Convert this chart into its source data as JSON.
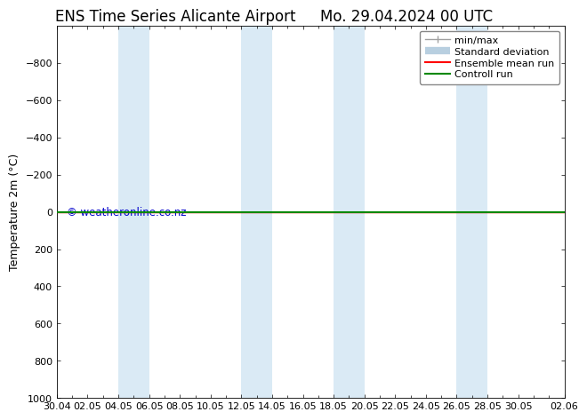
{
  "title_left": "ENS Time Series Alicante Airport",
  "title_right": "Mo. 29.04.2024 00 UTC",
  "ylabel": "Temperature 2m (°C)",
  "xlabel": "",
  "ylim": [
    -1000,
    1000
  ],
  "yticks": [
    -800,
    -600,
    -400,
    -200,
    0,
    200,
    400,
    600,
    800,
    1000
  ],
  "x_labels": [
    "30.04",
    "02.05",
    "04.05",
    "06.05",
    "08.05",
    "10.05",
    "12.05",
    "14.05",
    "16.05",
    "18.05",
    "20.05",
    "22.05",
    "24.05",
    "26.05",
    "28.05",
    "30.05",
    "02.06"
  ],
  "x_positions": [
    0,
    2,
    4,
    6,
    8,
    10,
    12,
    14,
    16,
    18,
    20,
    22,
    24,
    26,
    28,
    30,
    33
  ],
  "x_range": [
    0,
    33
  ],
  "shaded_bands": [
    [
      4,
      6
    ],
    [
      12,
      14
    ],
    [
      18,
      20
    ],
    [
      26,
      28
    ],
    [
      33,
      35
    ]
  ],
  "shaded_color": "#daeaf5",
  "ensemble_mean_y": 0,
  "control_run_y": 0,
  "ensemble_mean_color": "#ff0000",
  "control_run_color": "#008800",
  "watermark": "© weatheronline.co.nz",
  "watermark_color": "#0000cc",
  "bg_color": "#ffffff",
  "plot_bg_color": "#ffffff",
  "border_color": "#000000",
  "font_size_title": 12,
  "font_size_axis": 9,
  "font_size_tick": 8,
  "font_size_legend": 8,
  "legend_labels": [
    "min/max",
    "Standard deviation",
    "Ensemble mean run",
    "Controll run"
  ],
  "minmax_color": "#a0a0a0",
  "stddev_color": "#b8cfe0",
  "ensemble_mean_color2": "#ff0000",
  "control_run_color2": "#008800"
}
